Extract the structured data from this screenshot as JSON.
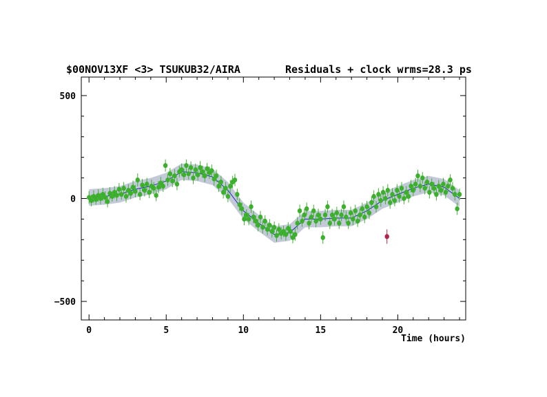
{
  "chart_data": {
    "type": "scatter",
    "title_left": "$00NOV13XF <3> TSUKUB32/AIRA",
    "title_right": "Residuals + clock wrms=28.3  ps",
    "xlabel": "Time (hours)",
    "ylabel": "",
    "xlim": [
      -0.5,
      24.4
    ],
    "ylim": [
      -590,
      590
    ],
    "xticks": [
      0,
      5,
      10,
      15,
      20
    ],
    "yticks": [
      -500,
      0,
      500
    ],
    "grid": false,
    "colors": {
      "points": "#3cb02c",
      "outlier": "#b0244a",
      "clock_line": "#1b2ab8",
      "band": "#c4c9da"
    },
    "clock_model": {
      "x": [
        0,
        1,
        2,
        3,
        4,
        5,
        6,
        7,
        8,
        9,
        10,
        11,
        12,
        13,
        14,
        15,
        16,
        17,
        18,
        19,
        20,
        21,
        22,
        23,
        24
      ],
      "y": [
        5,
        10,
        20,
        45,
        60,
        85,
        130,
        125,
        105,
        40,
        -60,
        -120,
        -175,
        -165,
        -100,
        -100,
        -95,
        -95,
        -60,
        -10,
        20,
        50,
        70,
        55,
        0
      ],
      "band_halfwidth": 40
    },
    "points": [
      {
        "x": 0.0,
        "y": 5,
        "err": 30
      },
      {
        "x": 0.15,
        "y": -10,
        "err": 28
      },
      {
        "x": 0.3,
        "y": 10,
        "err": 30
      },
      {
        "x": 0.45,
        "y": -5,
        "err": 25
      },
      {
        "x": 0.6,
        "y": 15,
        "err": 30
      },
      {
        "x": 0.75,
        "y": 0,
        "err": 28
      },
      {
        "x": 0.9,
        "y": 20,
        "err": 32
      },
      {
        "x": 1.05,
        "y": 5,
        "err": 30
      },
      {
        "x": 1.2,
        "y": -15,
        "err": 28
      },
      {
        "x": 1.35,
        "y": 25,
        "err": 30
      },
      {
        "x": 1.5,
        "y": 10,
        "err": 25
      },
      {
        "x": 1.65,
        "y": 30,
        "err": 30
      },
      {
        "x": 1.8,
        "y": 15,
        "err": 28
      },
      {
        "x": 1.95,
        "y": 45,
        "err": 30
      },
      {
        "x": 2.1,
        "y": 20,
        "err": 26
      },
      {
        "x": 2.25,
        "y": 50,
        "err": 30
      },
      {
        "x": 2.4,
        "y": 10,
        "err": 30
      },
      {
        "x": 2.55,
        "y": 40,
        "err": 30
      },
      {
        "x": 2.7,
        "y": 25,
        "err": 28
      },
      {
        "x": 2.85,
        "y": 55,
        "err": 32
      },
      {
        "x": 3.0,
        "y": 35,
        "err": 30
      },
      {
        "x": 3.15,
        "y": 90,
        "err": 32
      },
      {
        "x": 3.3,
        "y": 20,
        "err": 28
      },
      {
        "x": 3.45,
        "y": 65,
        "err": 30
      },
      {
        "x": 3.6,
        "y": 40,
        "err": 30
      },
      {
        "x": 3.75,
        "y": 70,
        "err": 30
      },
      {
        "x": 3.9,
        "y": 30,
        "err": 28
      },
      {
        "x": 4.05,
        "y": 60,
        "err": 32
      },
      {
        "x": 4.2,
        "y": 50,
        "err": 30
      },
      {
        "x": 4.35,
        "y": 15,
        "err": 28
      },
      {
        "x": 4.5,
        "y": 55,
        "err": 30
      },
      {
        "x": 4.65,
        "y": 75,
        "err": 30
      },
      {
        "x": 4.8,
        "y": 60,
        "err": 28
      },
      {
        "x": 4.95,
        "y": 160,
        "err": 30
      },
      {
        "x": 5.1,
        "y": 90,
        "err": 30
      },
      {
        "x": 5.25,
        "y": 120,
        "err": 28
      },
      {
        "x": 5.4,
        "y": 85,
        "err": 30
      },
      {
        "x": 5.55,
        "y": 110,
        "err": 32
      },
      {
        "x": 5.7,
        "y": 70,
        "err": 30
      },
      {
        "x": 5.85,
        "y": 130,
        "err": 28
      },
      {
        "x": 6.0,
        "y": 140,
        "err": 30
      },
      {
        "x": 6.15,
        "y": 115,
        "err": 30
      },
      {
        "x": 6.3,
        "y": 160,
        "err": 30
      },
      {
        "x": 6.45,
        "y": 120,
        "err": 28
      },
      {
        "x": 6.6,
        "y": 150,
        "err": 30
      },
      {
        "x": 6.75,
        "y": 100,
        "err": 30
      },
      {
        "x": 6.9,
        "y": 140,
        "err": 30
      },
      {
        "x": 7.05,
        "y": 115,
        "err": 28
      },
      {
        "x": 7.2,
        "y": 150,
        "err": 32
      },
      {
        "x": 7.35,
        "y": 130,
        "err": 30
      },
      {
        "x": 7.5,
        "y": 110,
        "err": 30
      },
      {
        "x": 7.65,
        "y": 145,
        "err": 28
      },
      {
        "x": 7.8,
        "y": 125,
        "err": 30
      },
      {
        "x": 7.95,
        "y": 135,
        "err": 30
      },
      {
        "x": 8.1,
        "y": 95,
        "err": 32
      },
      {
        "x": 8.25,
        "y": 110,
        "err": 30
      },
      {
        "x": 8.4,
        "y": 60,
        "err": 28
      },
      {
        "x": 8.55,
        "y": 80,
        "err": 30
      },
      {
        "x": 8.7,
        "y": 30,
        "err": 30
      },
      {
        "x": 8.85,
        "y": 50,
        "err": 30
      },
      {
        "x": 9.0,
        "y": 10,
        "err": 28
      },
      {
        "x": 9.15,
        "y": 60,
        "err": 30
      },
      {
        "x": 9.3,
        "y": 80,
        "err": 30
      },
      {
        "x": 9.45,
        "y": 90,
        "err": 30
      },
      {
        "x": 9.6,
        "y": 20,
        "err": 28
      },
      {
        "x": 9.75,
        "y": -30,
        "err": 30
      },
      {
        "x": 9.9,
        "y": -50,
        "err": 30
      },
      {
        "x": 10.05,
        "y": -100,
        "err": 30
      },
      {
        "x": 10.2,
        "y": -80,
        "err": 28
      },
      {
        "x": 10.35,
        "y": -100,
        "err": 30
      },
      {
        "x": 10.5,
        "y": -40,
        "err": 30
      },
      {
        "x": 10.65,
        "y": -90,
        "err": 30
      },
      {
        "x": 10.8,
        "y": -110,
        "err": 28
      },
      {
        "x": 10.95,
        "y": -130,
        "err": 30
      },
      {
        "x": 11.1,
        "y": -90,
        "err": 30
      },
      {
        "x": 11.25,
        "y": -140,
        "err": 30
      },
      {
        "x": 11.4,
        "y": -110,
        "err": 28
      },
      {
        "x": 11.55,
        "y": -150,
        "err": 30
      },
      {
        "x": 11.7,
        "y": -130,
        "err": 30
      },
      {
        "x": 11.85,
        "y": -160,
        "err": 30
      },
      {
        "x": 12.0,
        "y": -140,
        "err": 28
      },
      {
        "x": 12.15,
        "y": -180,
        "err": 30
      },
      {
        "x": 12.3,
        "y": -150,
        "err": 30
      },
      {
        "x": 12.45,
        "y": -170,
        "err": 30
      },
      {
        "x": 12.6,
        "y": -160,
        "err": 28
      },
      {
        "x": 12.75,
        "y": -175,
        "err": 30
      },
      {
        "x": 12.9,
        "y": -145,
        "err": 30
      },
      {
        "x": 13.05,
        "y": -160,
        "err": 30
      },
      {
        "x": 13.2,
        "y": -190,
        "err": 28
      },
      {
        "x": 13.35,
        "y": -175,
        "err": 30
      },
      {
        "x": 13.5,
        "y": -120,
        "err": 30
      },
      {
        "x": 13.65,
        "y": -60,
        "err": 30
      },
      {
        "x": 13.8,
        "y": -110,
        "err": 28
      },
      {
        "x": 13.95,
        "y": -80,
        "err": 30
      },
      {
        "x": 14.1,
        "y": -50,
        "err": 30
      },
      {
        "x": 14.25,
        "y": -120,
        "err": 30
      },
      {
        "x": 14.4,
        "y": -90,
        "err": 28
      },
      {
        "x": 14.55,
        "y": -60,
        "err": 30
      },
      {
        "x": 14.7,
        "y": -110,
        "err": 30
      },
      {
        "x": 14.85,
        "y": -80,
        "err": 30
      },
      {
        "x": 15.0,
        "y": -100,
        "err": 28
      },
      {
        "x": 15.15,
        "y": -190,
        "err": 30
      },
      {
        "x": 15.3,
        "y": -80,
        "err": 30
      },
      {
        "x": 15.45,
        "y": -40,
        "err": 30
      },
      {
        "x": 15.6,
        "y": -120,
        "err": 28
      },
      {
        "x": 15.75,
        "y": -80,
        "err": 30
      },
      {
        "x": 15.9,
        "y": -100,
        "err": 30
      },
      {
        "x": 16.05,
        "y": -70,
        "err": 30
      },
      {
        "x": 16.2,
        "y": -120,
        "err": 28
      },
      {
        "x": 16.35,
        "y": -80,
        "err": 30
      },
      {
        "x": 16.5,
        "y": -40,
        "err": 30
      },
      {
        "x": 16.65,
        "y": -90,
        "err": 30
      },
      {
        "x": 16.8,
        "y": -120,
        "err": 28
      },
      {
        "x": 16.95,
        "y": -70,
        "err": 30
      },
      {
        "x": 17.1,
        "y": -100,
        "err": 30
      },
      {
        "x": 17.25,
        "y": -60,
        "err": 30
      },
      {
        "x": 17.4,
        "y": -110,
        "err": 28
      },
      {
        "x": 17.55,
        "y": -80,
        "err": 30
      },
      {
        "x": 17.7,
        "y": -50,
        "err": 30
      },
      {
        "x": 17.85,
        "y": -90,
        "err": 30
      },
      {
        "x": 18.0,
        "y": -40,
        "err": 28
      },
      {
        "x": 18.15,
        "y": -70,
        "err": 30
      },
      {
        "x": 18.3,
        "y": -20,
        "err": 30
      },
      {
        "x": 18.45,
        "y": 10,
        "err": 30
      },
      {
        "x": 18.6,
        "y": -40,
        "err": 28
      },
      {
        "x": 18.75,
        "y": 20,
        "err": 30
      },
      {
        "x": 18.9,
        "y": -10,
        "err": 30
      },
      {
        "x": 19.05,
        "y": 30,
        "err": 30
      },
      {
        "x": 19.2,
        "y": 0,
        "err": 28
      },
      {
        "x": 19.35,
        "y": 40,
        "err": 30
      },
      {
        "x": 19.5,
        "y": -20,
        "err": 30
      },
      {
        "x": 19.65,
        "y": 20,
        "err": 30
      },
      {
        "x": 19.8,
        "y": -10,
        "err": 28
      },
      {
        "x": 19.95,
        "y": 40,
        "err": 30
      },
      {
        "x": 20.1,
        "y": 10,
        "err": 30
      },
      {
        "x": 20.25,
        "y": 50,
        "err": 30
      },
      {
        "x": 20.4,
        "y": 0,
        "err": 28
      },
      {
        "x": 20.55,
        "y": 30,
        "err": 30
      },
      {
        "x": 20.7,
        "y": 10,
        "err": 30
      },
      {
        "x": 20.85,
        "y": 60,
        "err": 30
      },
      {
        "x": 21.0,
        "y": 40,
        "err": 28
      },
      {
        "x": 21.15,
        "y": 70,
        "err": 30
      },
      {
        "x": 21.3,
        "y": 110,
        "err": 30
      },
      {
        "x": 21.45,
        "y": 60,
        "err": 30
      },
      {
        "x": 21.6,
        "y": 100,
        "err": 28
      },
      {
        "x": 21.75,
        "y": 50,
        "err": 30
      },
      {
        "x": 21.9,
        "y": 80,
        "err": 30
      },
      {
        "x": 22.05,
        "y": 30,
        "err": 30
      },
      {
        "x": 22.2,
        "y": 70,
        "err": 28
      },
      {
        "x": 22.35,
        "y": 50,
        "err": 30
      },
      {
        "x": 22.5,
        "y": 20,
        "err": 30
      },
      {
        "x": 22.65,
        "y": 60,
        "err": 30
      },
      {
        "x": 22.8,
        "y": 40,
        "err": 28
      },
      {
        "x": 22.95,
        "y": 70,
        "err": 30
      },
      {
        "x": 23.1,
        "y": 30,
        "err": 30
      },
      {
        "x": 23.25,
        "y": 60,
        "err": 30
      },
      {
        "x": 23.4,
        "y": 90,
        "err": 28
      },
      {
        "x": 23.55,
        "y": 50,
        "err": 30
      },
      {
        "x": 23.7,
        "y": 20,
        "err": 30
      },
      {
        "x": 23.85,
        "y": -50,
        "err": 30
      },
      {
        "x": 24.0,
        "y": 20,
        "err": 28
      }
    ],
    "outliers": [
      {
        "x": 19.3,
        "y": -185,
        "err": 35
      }
    ]
  }
}
